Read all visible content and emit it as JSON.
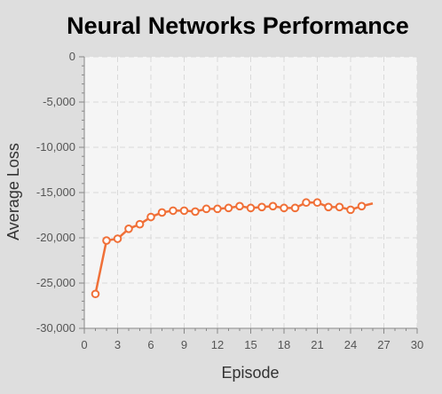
{
  "chart_data": {
    "type": "line",
    "title": "Neural Networks Performance",
    "xlabel": "Episode",
    "ylabel": "Average Loss",
    "xlim": [
      0,
      30
    ],
    "ylim": [
      -30000,
      0
    ],
    "xticks": [
      0,
      3,
      6,
      9,
      12,
      15,
      18,
      21,
      24,
      27,
      30
    ],
    "xtick_labels": [
      "0",
      "3",
      "6",
      "9",
      "12",
      "15",
      "18",
      "21",
      "24",
      "27",
      "30"
    ],
    "yticks": [
      0,
      -5000,
      -10000,
      -15000,
      -20000,
      -25000,
      -30000
    ],
    "ytick_labels": [
      "0",
      "-5,000",
      "-10,000",
      "-15,000",
      "-20,000",
      "-25,000",
      "-30,000"
    ],
    "grid": true,
    "legend": "none",
    "colors": {
      "series": "#f07038",
      "background": "#dedede",
      "plot_background": "#f5f5f5",
      "grid": "#d9d9d9"
    },
    "series": [
      {
        "x": [
          1,
          2,
          3,
          4,
          5,
          6,
          7,
          8,
          9,
          10,
          11,
          12,
          13,
          14,
          15,
          16,
          17,
          18,
          19,
          20,
          21,
          22,
          23,
          24,
          25,
          26
        ],
        "values": [
          -26200,
          -20300,
          -20100,
          -19000,
          -18500,
          -17700,
          -17200,
          -17000,
          -17000,
          -17100,
          -16800,
          -16800,
          -16700,
          -16500,
          -16700,
          -16600,
          -16500,
          -16700,
          -16700,
          -16100,
          -16100,
          -16600,
          -16600,
          -16900,
          -16500,
          -16200
        ],
        "markers": [
          true,
          true,
          true,
          true,
          true,
          true,
          true,
          true,
          true,
          true,
          true,
          true,
          true,
          true,
          true,
          true,
          true,
          true,
          true,
          true,
          true,
          true,
          true,
          true,
          true,
          false
        ]
      }
    ]
  }
}
